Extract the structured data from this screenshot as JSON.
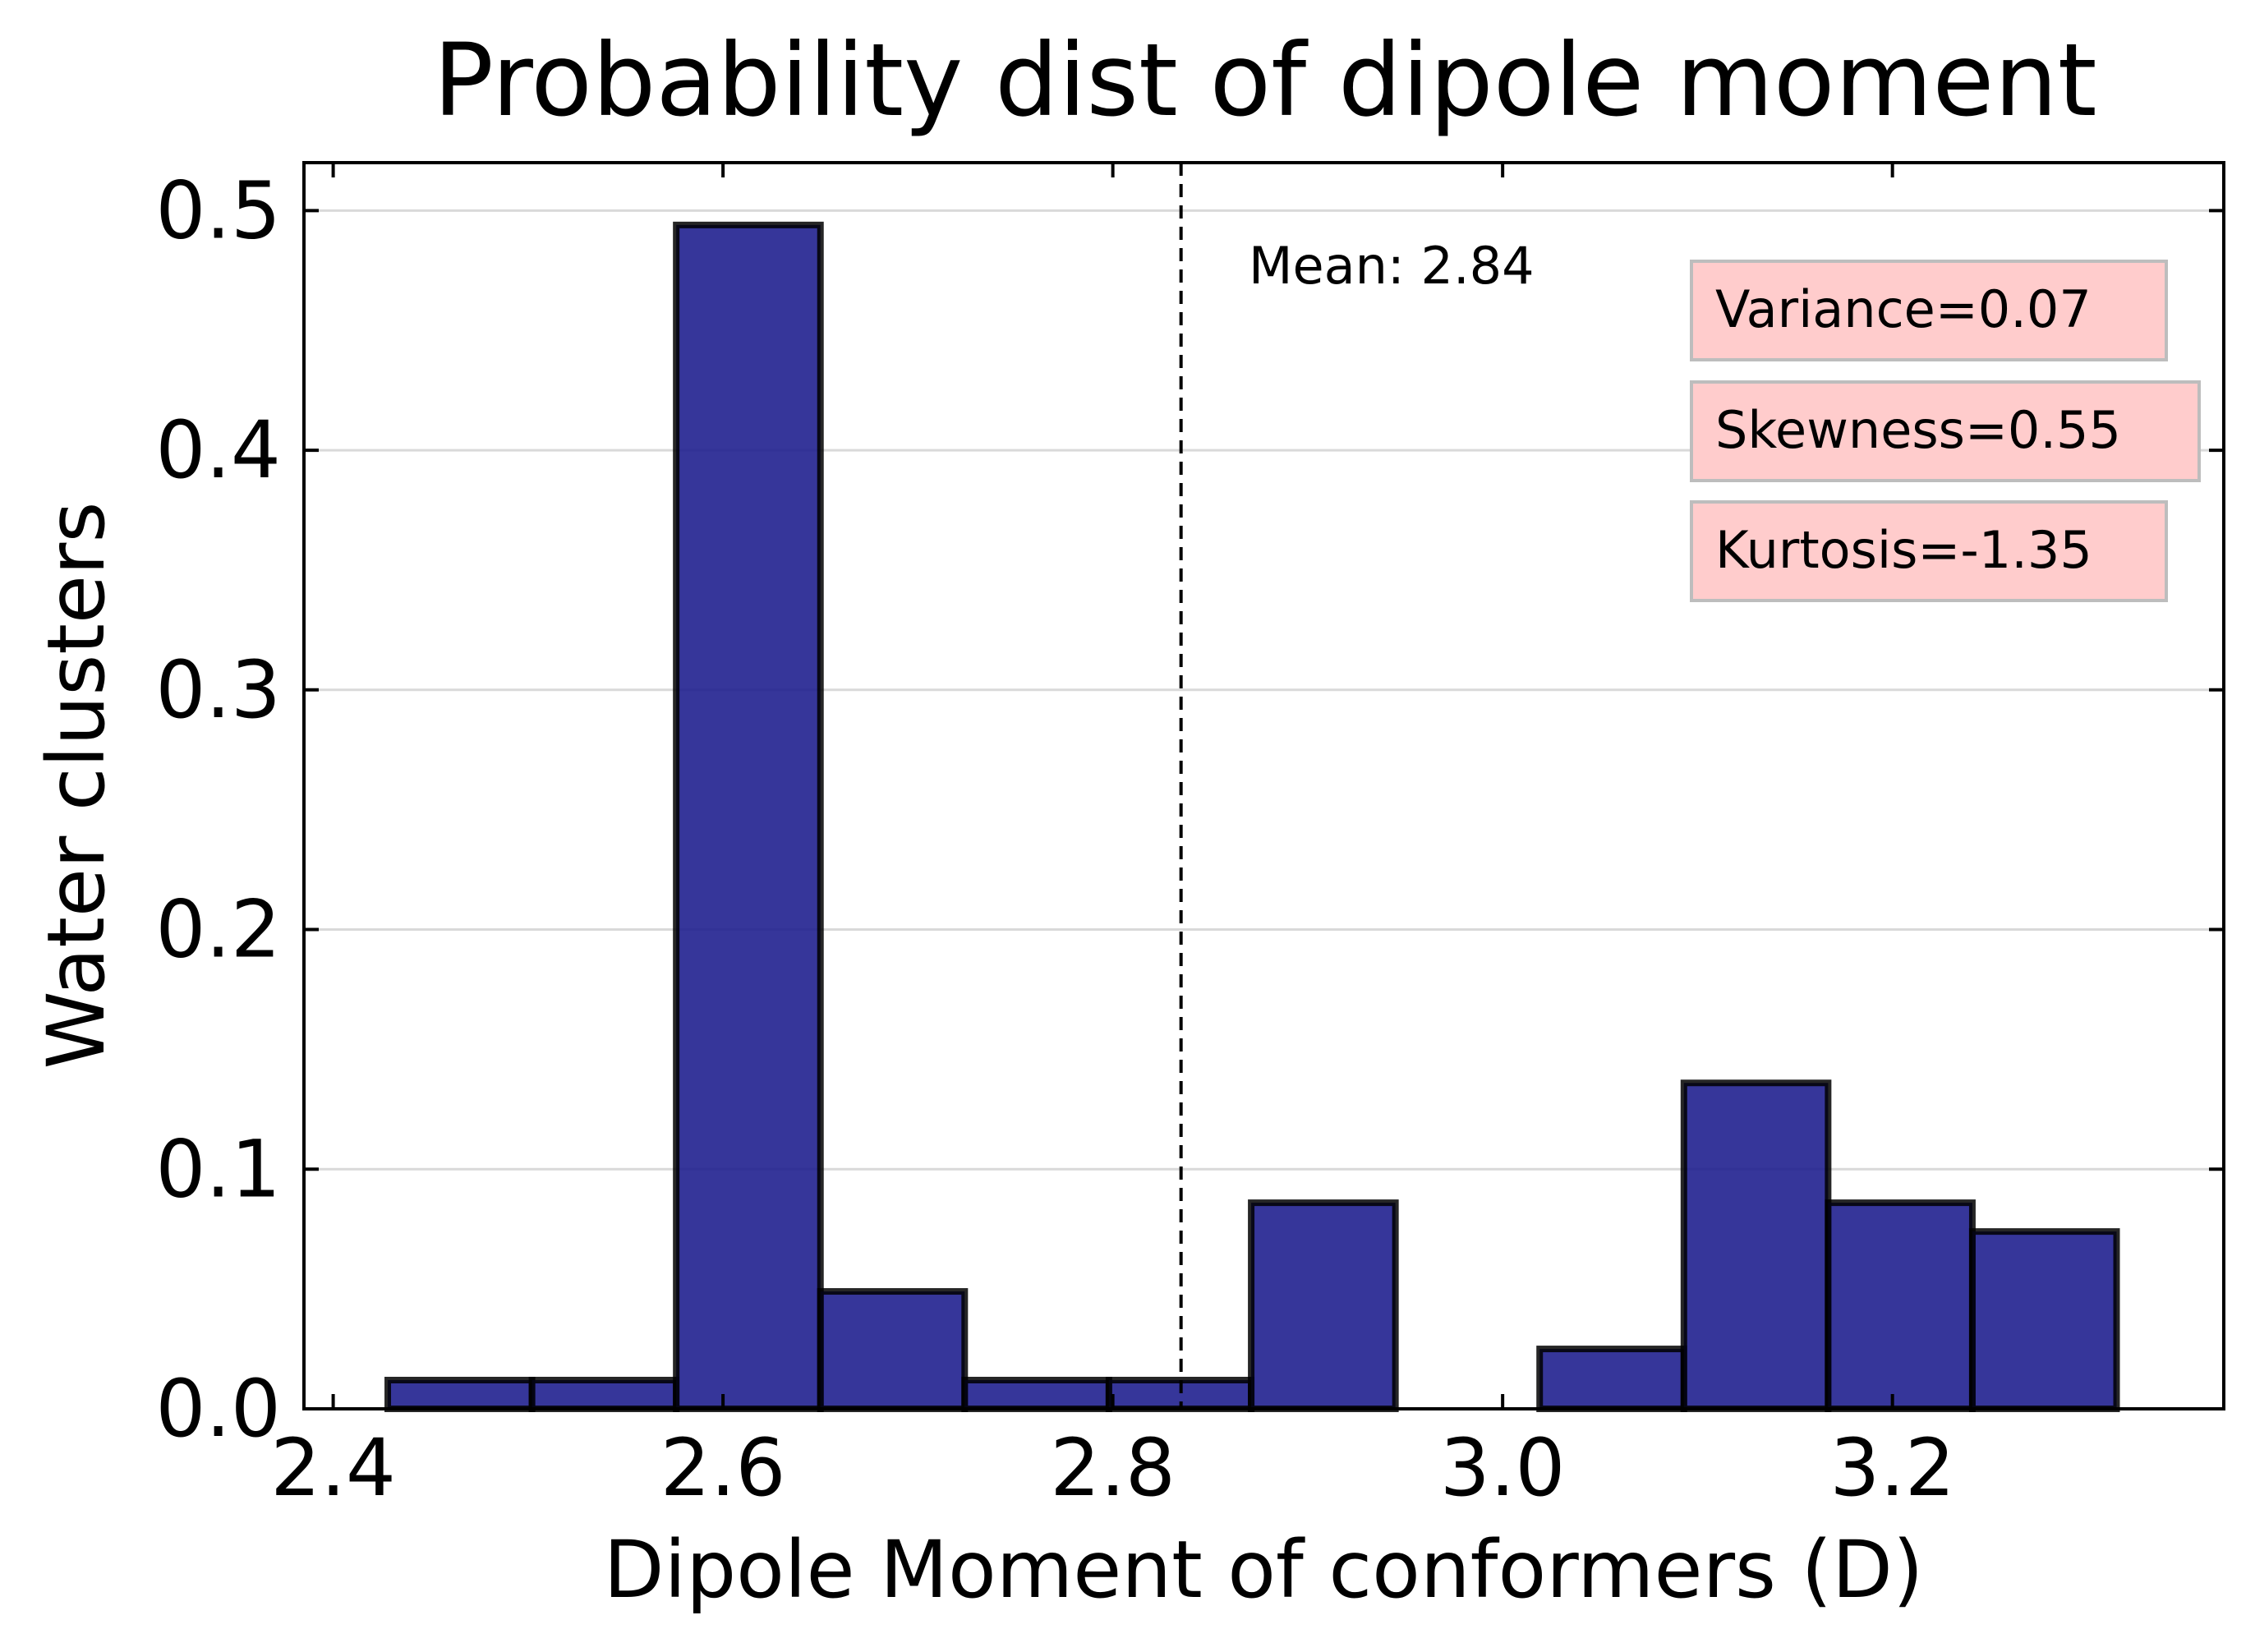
{
  "chart_data": {
    "type": "bar",
    "title": "Probability dist of dipole moment",
    "xlabel": "Dipole Moment of conformers (D)",
    "ylabel": "Water clusters",
    "xlim": [
      2.385,
      3.37
    ],
    "ylim": [
      0.0,
      0.52
    ],
    "xticks": [
      2.4,
      2.6,
      2.8,
      3.0,
      3.2
    ],
    "xtick_labels": [
      "2.4",
      "2.6",
      "2.8",
      "3.0",
      "3.2"
    ],
    "yticks": [
      0.0,
      0.1,
      0.2,
      0.3,
      0.4,
      0.5
    ],
    "ytick_labels": [
      "0.0",
      "0.1",
      "0.2",
      "0.3",
      "0.4",
      "0.5"
    ],
    "grid": "horizontal",
    "bar_color": "#1a1a8c",
    "edge_color": "#000000",
    "bins": [
      {
        "left": 2.428,
        "right": 2.502,
        "value": 0.012
      },
      {
        "left": 2.502,
        "right": 2.576,
        "value": 0.012
      },
      {
        "left": 2.576,
        "right": 2.65,
        "value": 0.494
      },
      {
        "left": 2.65,
        "right": 2.724,
        "value": 0.049
      },
      {
        "left": 2.724,
        "right": 2.798,
        "value": 0.012
      },
      {
        "left": 2.798,
        "right": 2.871,
        "value": 0.012
      },
      {
        "left": 2.871,
        "right": 2.945,
        "value": 0.086
      },
      {
        "left": 2.945,
        "right": 3.019,
        "value": 0.0
      },
      {
        "left": 3.019,
        "right": 3.093,
        "value": 0.025
      },
      {
        "left": 3.093,
        "right": 3.167,
        "value": 0.136
      },
      {
        "left": 3.167,
        "right": 3.241,
        "value": 0.086
      },
      {
        "left": 3.241,
        "right": 3.315,
        "value": 0.074
      }
    ],
    "mean_line": {
      "x": 2.835,
      "style": "dashed"
    },
    "annotations": {
      "mean": "Mean: 2.84",
      "variance": "Variance=0.07",
      "skewness": "Skewness=0.55",
      "kurtosis": "Kurtosis=-1.35"
    },
    "annotation_box_color": "#ffcccc"
  }
}
